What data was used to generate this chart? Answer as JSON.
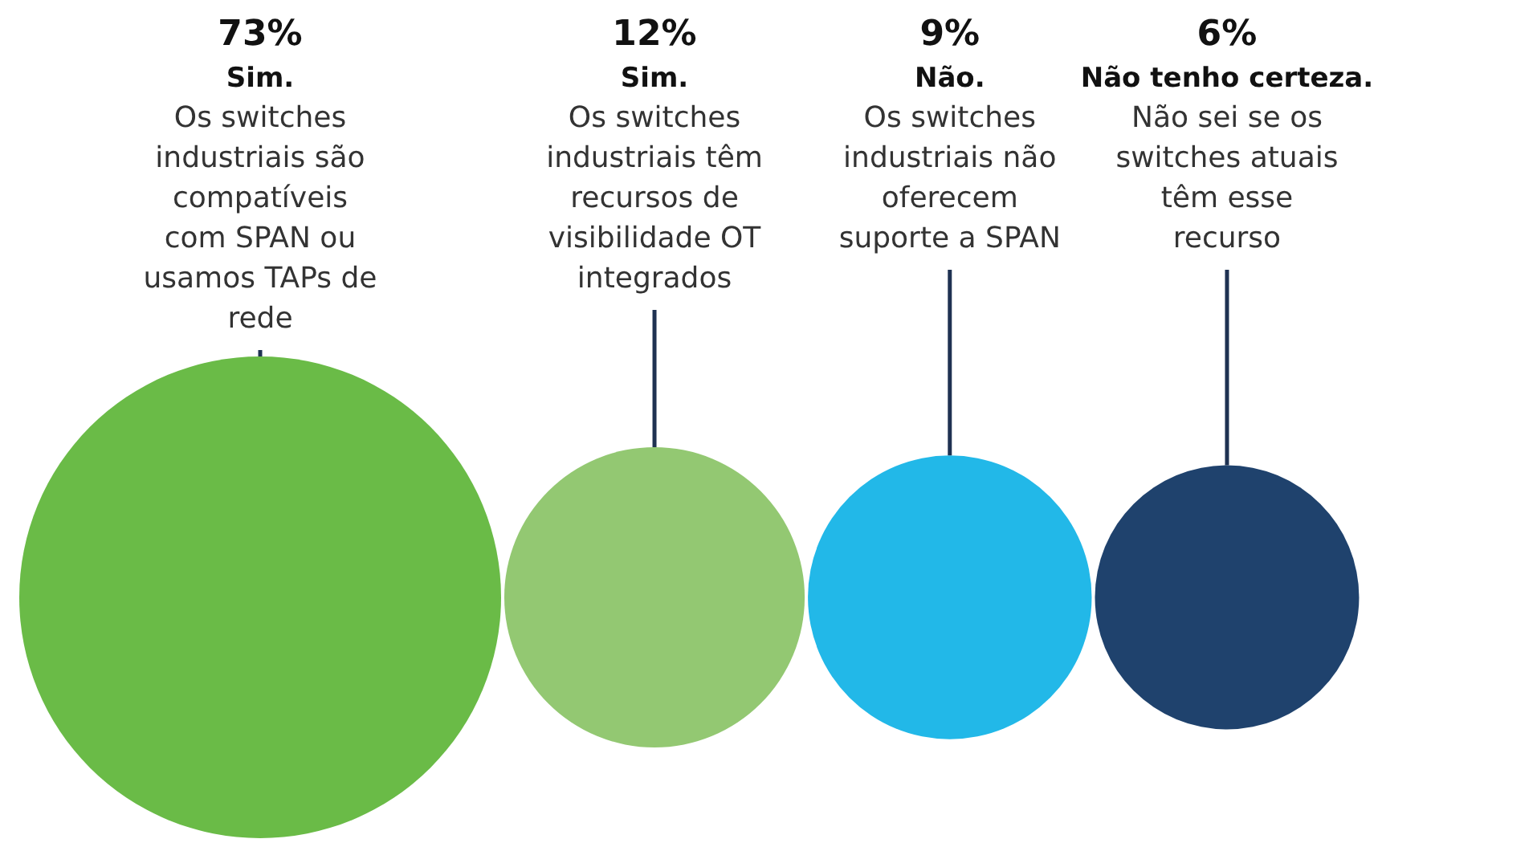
{
  "chart_data": {
    "type": "other",
    "categories": [
      "Sim.",
      "Sim.",
      "Não.",
      "Não tenho certeza."
    ],
    "values": [
      73,
      12,
      9,
      6
    ],
    "value_labels": [
      "73%",
      "12%",
      "9%",
      "6%"
    ],
    "colors": [
      "#6abb47",
      "#93c872",
      "#22b8e8",
      "#1f426d"
    ],
    "annotations": [
      "Os switches industriais são compatíveis com SPAN ou usamos TAPs de rede",
      "Os switches industriais têm recursos de visibilidade OT integrados",
      "Os switches industriais não oferecem suporte a SPAN",
      "Não sei se os switches atuais têm esse recurso"
    ]
  }
}
